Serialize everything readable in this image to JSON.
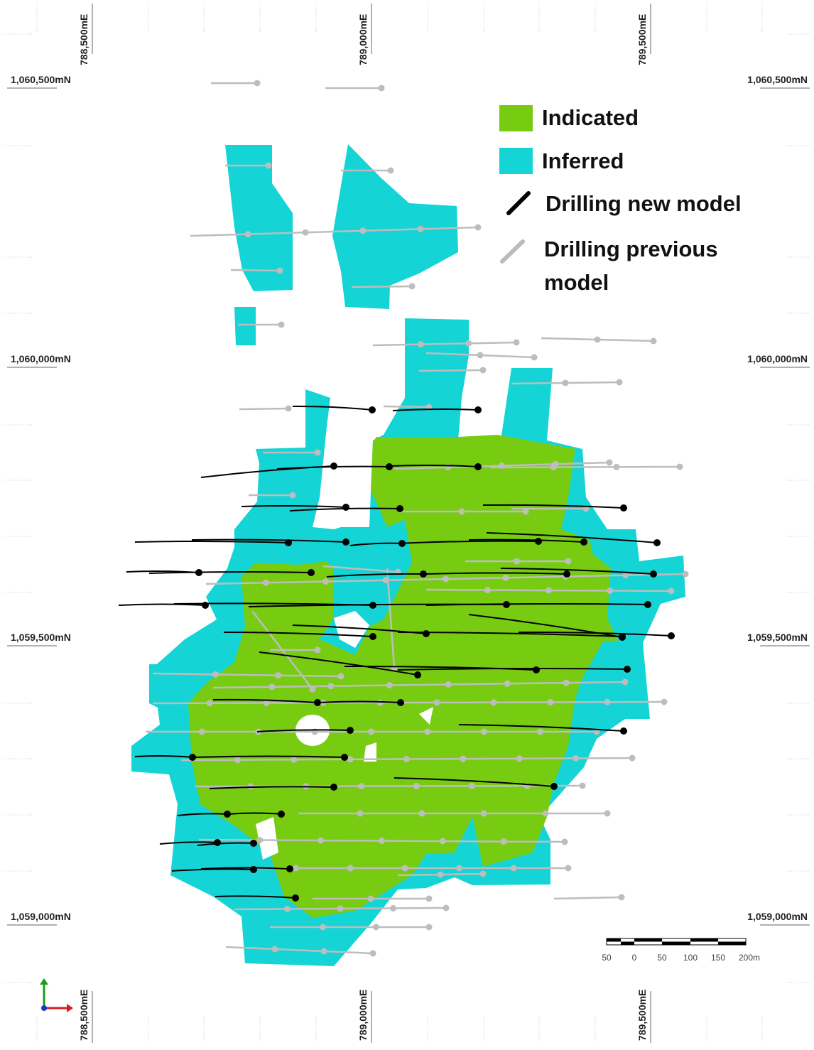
{
  "grid": {
    "eastings": [
      "788,500mE",
      "789,000mE",
      "789,500mE"
    ],
    "northings": [
      "1,060,500mN",
      "1,060,000mN",
      "1,059,500mN",
      "1,059,000mN"
    ]
  },
  "legend": {
    "indicated": "Indicated",
    "inferred": "Inferred",
    "drilling_new": "Drilling new model",
    "drilling_previous": [
      "Drilling previous",
      "model"
    ]
  },
  "scale_bar": {
    "labels": [
      "50",
      "0",
      "50",
      "100",
      "150",
      "200m"
    ]
  }
}
